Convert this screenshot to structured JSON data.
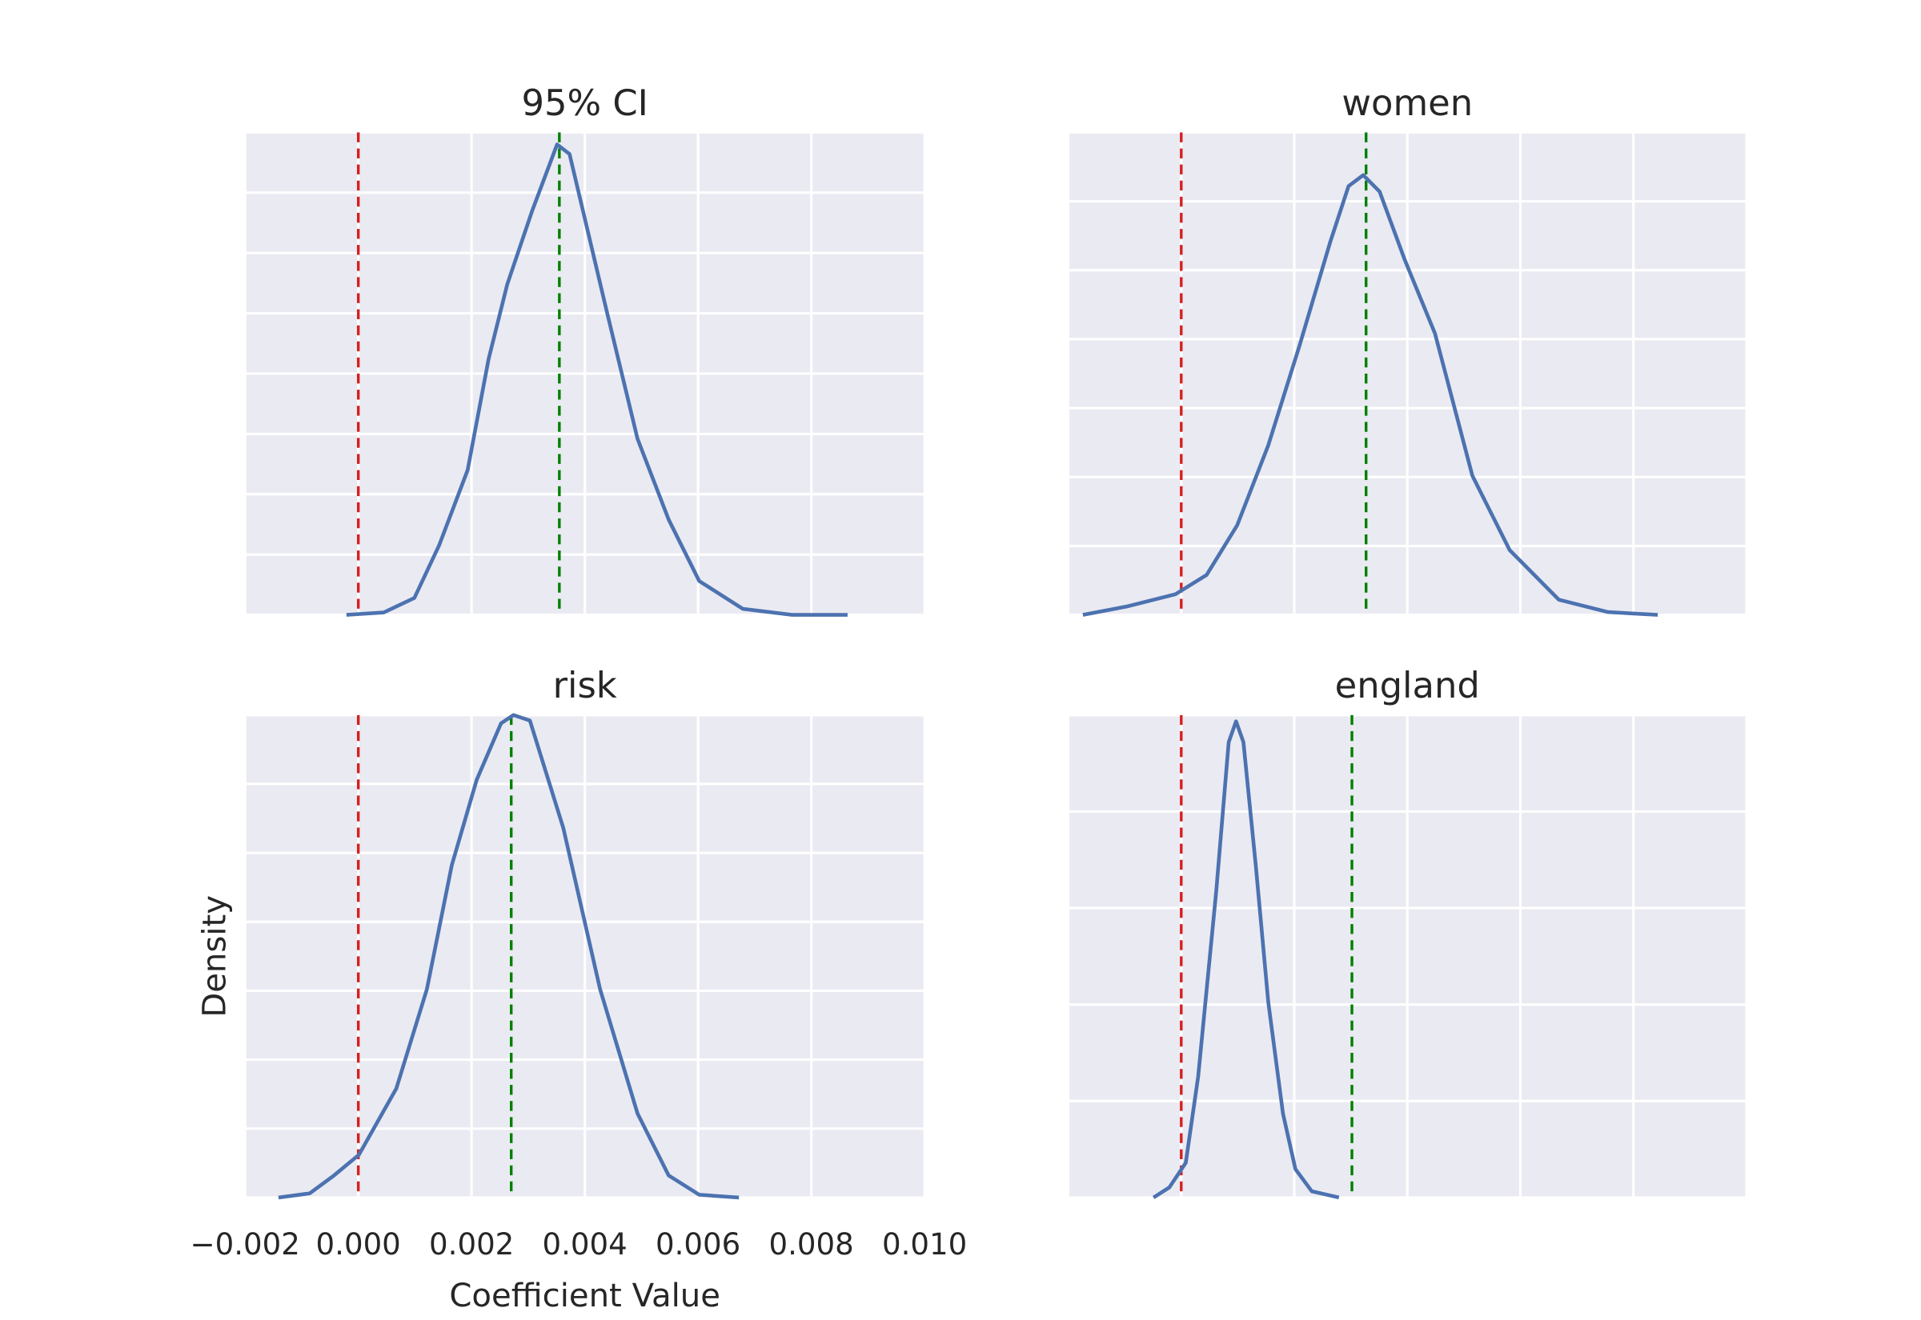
{
  "chart_data": [
    {
      "type": "line",
      "title": "95% CI",
      "color": "#4c72b0",
      "x": [
        -0.00021,
        0.00045,
        0.00099,
        0.00143,
        0.00193,
        0.0023,
        0.00263,
        0.00307,
        0.00351,
        0.00373,
        0.00438,
        0.00493,
        0.00548,
        0.00602,
        0.00679,
        0.00766,
        0.00864
      ],
      "values": [
        0,
        2,
        14,
        58,
        120,
        212,
        274,
        335,
        390,
        382,
        253,
        146,
        79,
        28,
        5,
        0,
        0
      ],
      "vlines": [
        {
          "value": 0,
          "color": "#d62020"
        },
        {
          "value": 0.00355,
          "color": "#008000"
        }
      ],
      "xlim": [
        -0.002,
        0.01
      ],
      "xticks": [
        -0.002,
        0,
        0.002,
        0.004,
        0.006,
        0.008,
        0.01
      ],
      "ylim": [
        0,
        400
      ],
      "yticks": [
        0,
        50,
        100,
        150,
        200,
        250,
        300,
        350,
        400
      ],
      "grid": true
    },
    {
      "type": "line",
      "title": "women",
      "color": "#4c72b0",
      "x": [
        -0.00174,
        -0.00097,
        -0.0001,
        0.00045,
        0.00099,
        0.00154,
        0.00209,
        0.00264,
        0.00296,
        0.00322,
        0.00351,
        0.00395,
        0.00449,
        0.00515,
        0.00581,
        0.00668,
        0.00755,
        0.00843
      ],
      "values": [
        0,
        6,
        15,
        29,
        65,
        123,
        195,
        271,
        311,
        319,
        307,
        258,
        204,
        101,
        47,
        11,
        2,
        0
      ],
      "vlines": [
        {
          "value": 0,
          "color": "#d62020"
        },
        {
          "value": 0.00327,
          "color": "#008000"
        }
      ],
      "xlim": [
        -0.002,
        0.01
      ],
      "xticks": [
        -0.002,
        0,
        0.002,
        0.004,
        0.006,
        0.008,
        0.01
      ],
      "ylim": [
        0,
        350
      ],
      "yticks": [
        0,
        50,
        100,
        150,
        200,
        250,
        300,
        350
      ],
      "grid": true
    },
    {
      "type": "line",
      "title": "risk",
      "color": "#4c72b0",
      "xlabel": "Coefficient Value",
      "ylabel": "Density",
      "x": [
        -0.00141,
        -0.00086,
        -0.00043,
        1e-05,
        0.00067,
        0.00121,
        0.00165,
        0.00209,
        0.00252,
        0.00274,
        0.00303,
        0.00362,
        0.00427,
        0.00493,
        0.00548,
        0.00602,
        0.00672
      ],
      "values": [
        0,
        3,
        16,
        31,
        79,
        151,
        241,
        303,
        344,
        350,
        346,
        268,
        151,
        61,
        16,
        2,
        0
      ],
      "vlines": [
        {
          "value": 0,
          "color": "#d62020"
        },
        {
          "value": 0.0027,
          "color": "#008000"
        }
      ],
      "xlim": [
        -0.002,
        0.01
      ],
      "xticks": [
        {
          "value": -0.002,
          "label": "−0.002"
        },
        {
          "value": 0,
          "label": "0.000"
        },
        {
          "value": 0.002,
          "label": "0.002"
        },
        {
          "value": 0.004,
          "label": "0.004"
        },
        {
          "value": 0.006,
          "label": "0.006"
        },
        {
          "value": 0.008,
          "label": "0.008"
        },
        {
          "value": 0.01,
          "label": "0.010"
        }
      ],
      "ylim": [
        0,
        350
      ],
      "yticks": [
        0,
        50,
        100,
        150,
        200,
        250,
        300,
        350
      ],
      "grid": true
    },
    {
      "type": "line",
      "title": "england",
      "color": "#4c72b0",
      "x": [
        -0.00049,
        -0.00021,
        8e-05,
        0.0003,
        0.00062,
        0.00084,
        0.00097,
        0.0011,
        0.00132,
        0.00154,
        0.0018,
        0.00202,
        0.00231,
        0.00279
      ],
      "values": [
        0,
        21,
        72,
        251,
        636,
        944,
        987,
        944,
        687,
        405,
        174,
        59,
        13,
        0
      ],
      "vlines": [
        {
          "value": 0,
          "color": "#d62020"
        },
        {
          "value": 0.00302,
          "color": "#008000"
        }
      ],
      "xlim": [
        -0.002,
        0.01
      ],
      "xticks": [
        -0.002,
        0,
        0.002,
        0.004,
        0.006,
        0.008,
        0.01
      ],
      "ylim": [
        0,
        1000
      ],
      "yticks": [
        0,
        200,
        400,
        600,
        800,
        1000
      ],
      "grid": true
    }
  ]
}
